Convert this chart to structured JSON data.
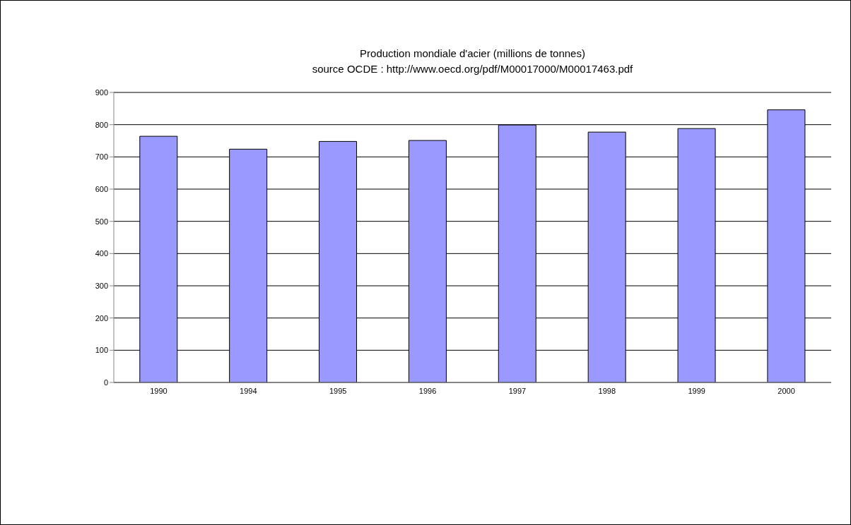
{
  "chart_data": {
    "type": "bar",
    "title": "Production mondiale d'acier (millions de tonnes)",
    "subtitle": "source OCDE : http://www.oecd.org/pdf/M00017000/M00017463.pdf",
    "categories": [
      "1990",
      "1994",
      "1995",
      "1996",
      "1997",
      "1998",
      "1999",
      "2000"
    ],
    "values": [
      764,
      724,
      748,
      751,
      799,
      777,
      788,
      846
    ],
    "color": "#9999ff",
    "ylim": [
      0,
      900
    ],
    "yticks": [
      0,
      100,
      200,
      300,
      400,
      500,
      600,
      700,
      800,
      900
    ],
    "grid": "y"
  }
}
